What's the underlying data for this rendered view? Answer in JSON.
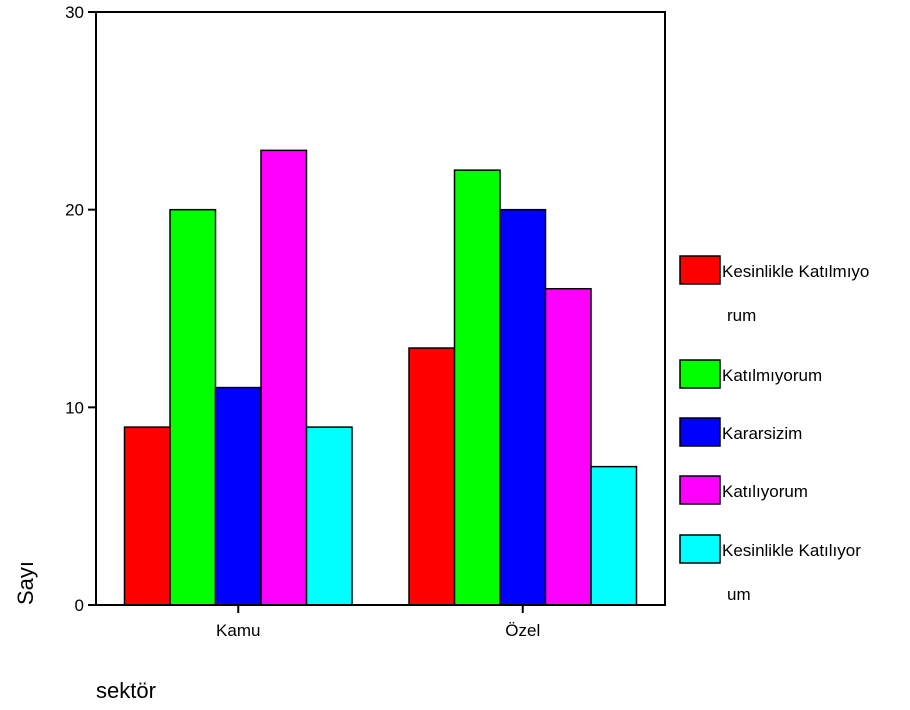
{
  "chart_data": {
    "type": "bar",
    "xlabel": "sektör",
    "ylabel": "Sayı",
    "ylim": [
      0,
      30
    ],
    "yticks": [
      0,
      10,
      20,
      30
    ],
    "grid": false,
    "legend_position": "right",
    "categories": [
      "Kamu",
      "Özel"
    ],
    "series": [
      {
        "name": "Kesinlikle Katılmıyorum",
        "legend_lines": [
          "Kesinlikle Katılmıyo",
          "rum"
        ],
        "color": "#ff0000",
        "values": [
          9,
          13
        ]
      },
      {
        "name": "Katılmıyorum",
        "legend_lines": [
          "Katılmıyorum"
        ],
        "color": "#00ff00",
        "values": [
          20,
          22
        ]
      },
      {
        "name": "Kararsizim",
        "legend_lines": [
          "Kararsizim"
        ],
        "color": "#0000ff",
        "values": [
          11,
          20
        ]
      },
      {
        "name": "Katılıyorum",
        "legend_lines": [
          "Katılıyorum"
        ],
        "color": "#ff00ff",
        "values": [
          23,
          16
        ]
      },
      {
        "name": "Kesinlikle Katılıyorum",
        "legend_lines": [
          "Kesinlikle Katılıyor",
          "um"
        ],
        "color": "#00ffff",
        "values": [
          9,
          7
        ]
      }
    ]
  }
}
